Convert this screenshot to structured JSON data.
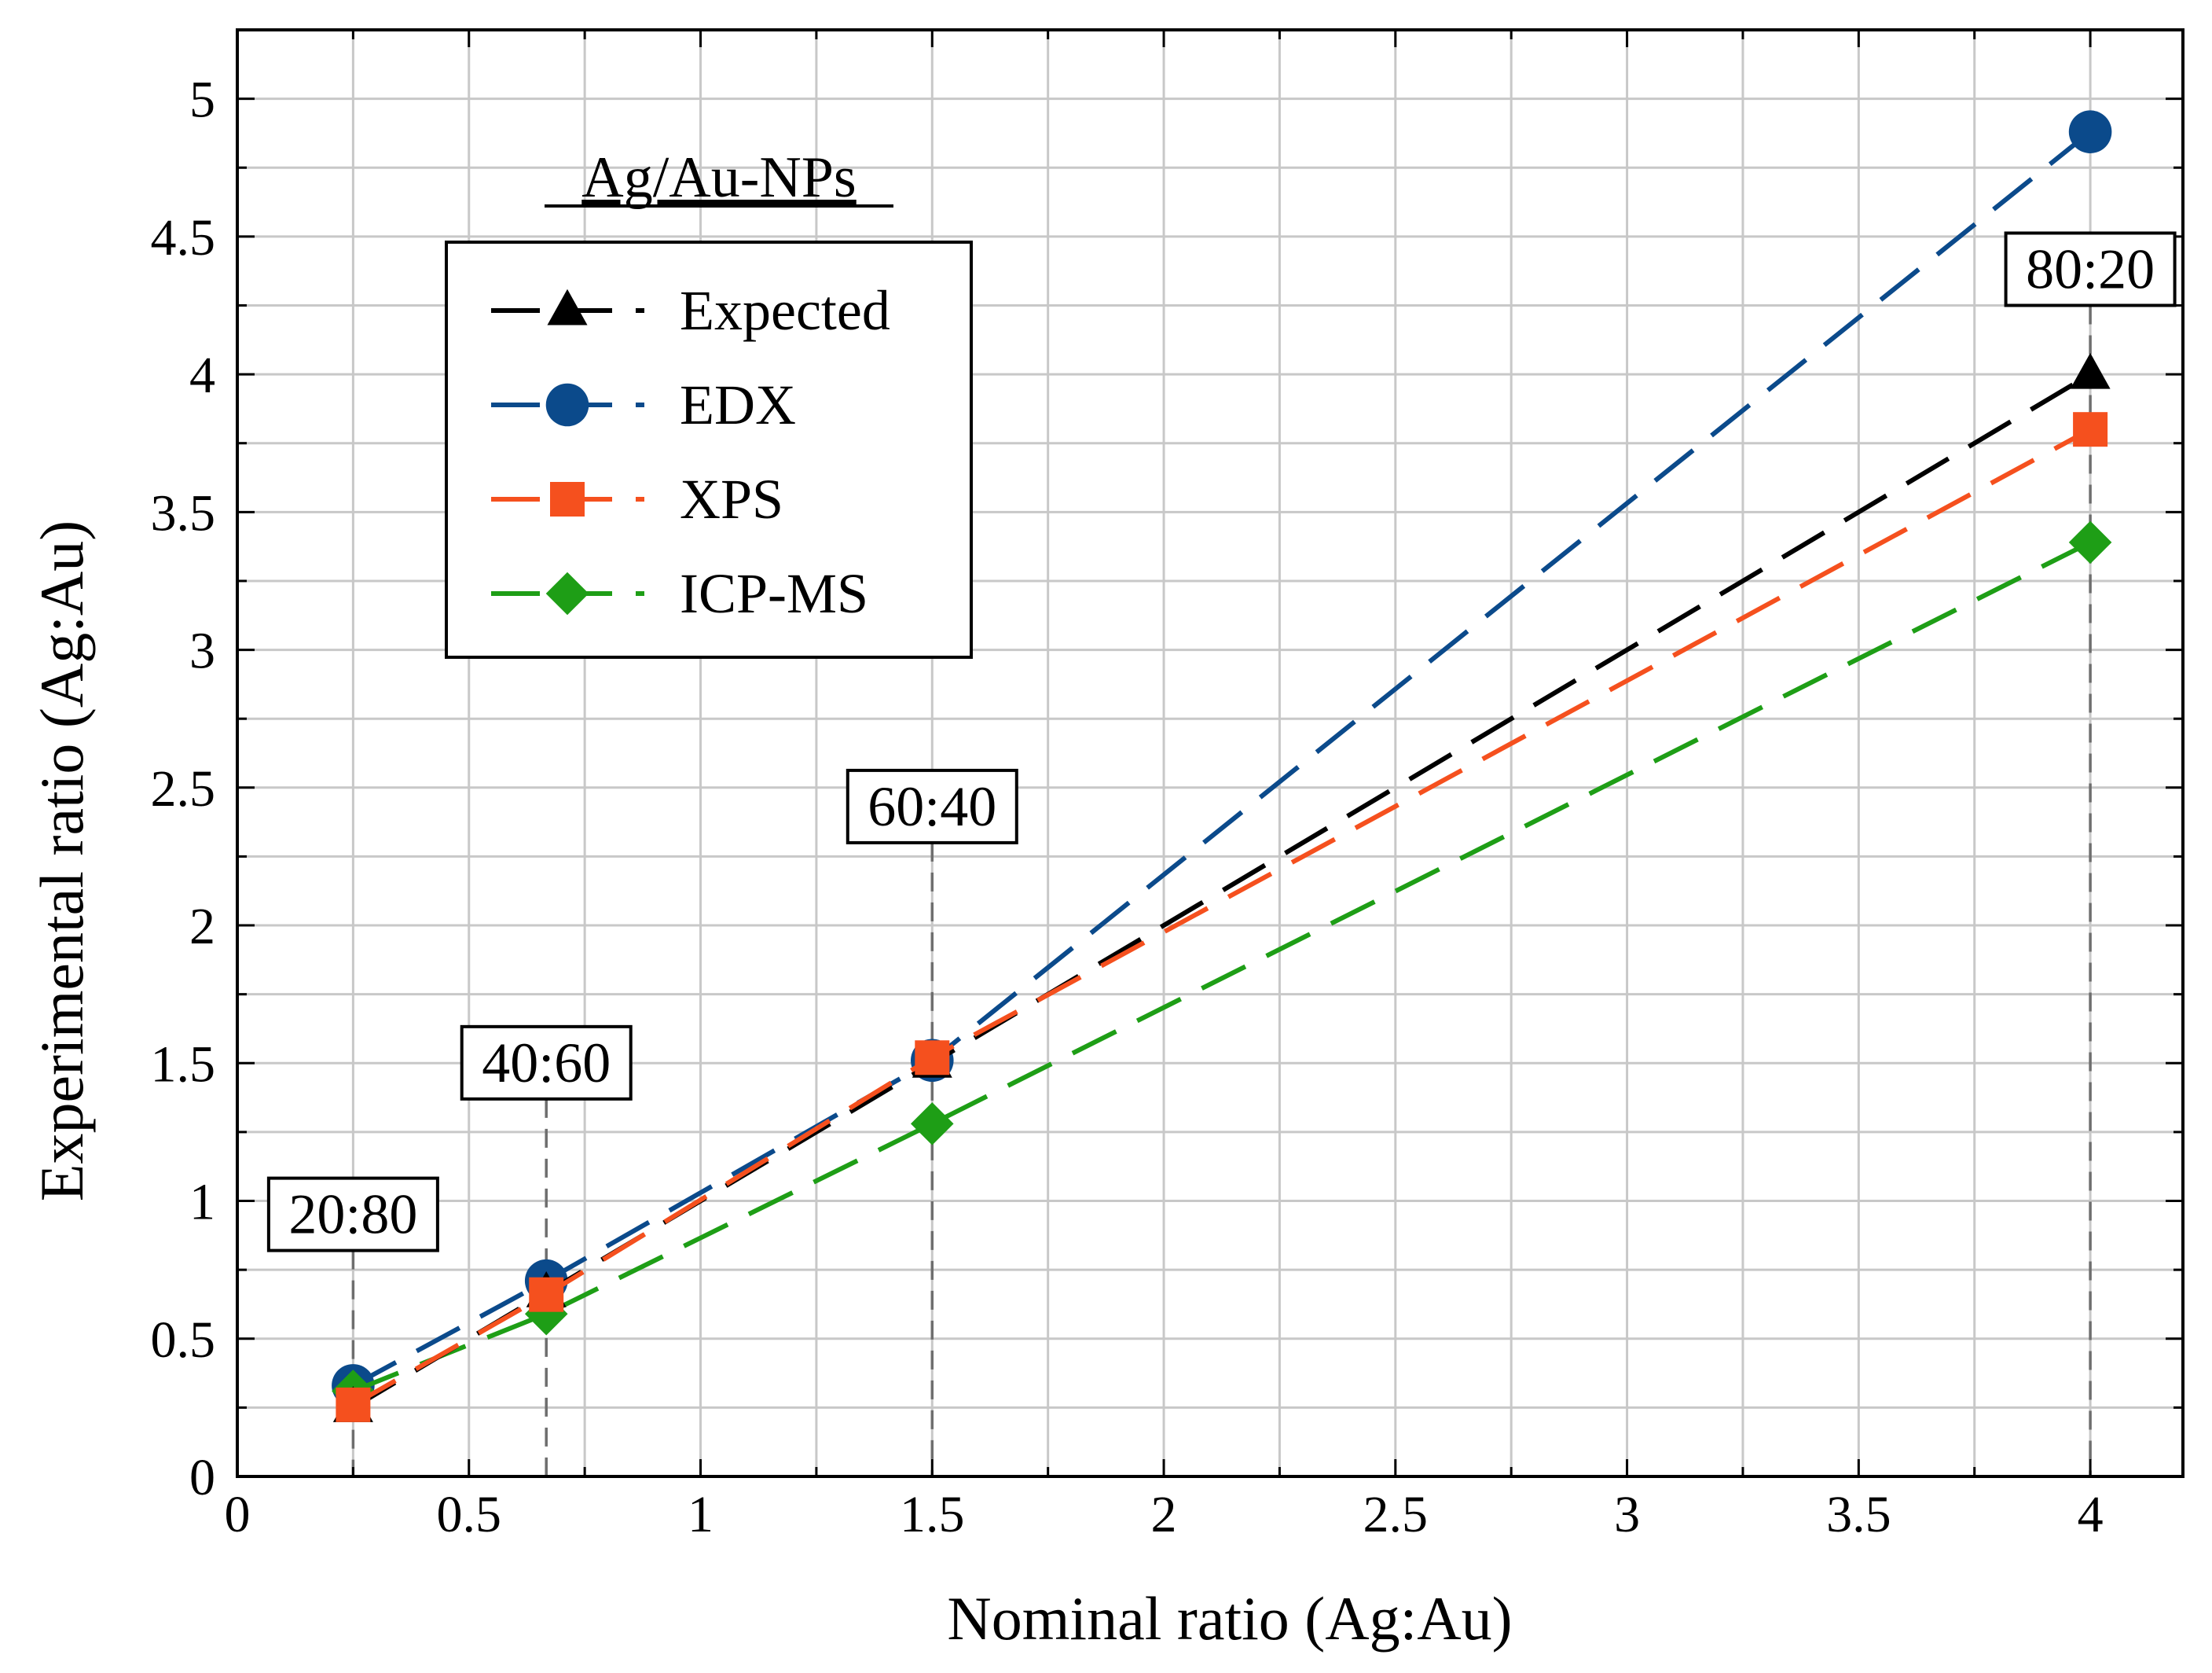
{
  "chart_data": {
    "type": "line",
    "title": "",
    "inset_title": "Ag/Au-NPs",
    "xlabel": "Nominal ratio (Ag:Au)",
    "ylabel": "Experimental ratio (Ag:Au)",
    "xlim": [
      0,
      4.2
    ],
    "ylim": [
      0,
      5.25
    ],
    "x_ticks": [
      0,
      0.5,
      1,
      1.5,
      2,
      2.5,
      3,
      3.5,
      4
    ],
    "x_tick_labels": [
      "0",
      "0.5",
      "1",
      "1.5",
      "2",
      "2.5",
      "3",
      "3.5",
      "4"
    ],
    "y_ticks": [
      0,
      0.5,
      1,
      1.5,
      2,
      2.5,
      3,
      3.5,
      4,
      4.5,
      5
    ],
    "y_tick_labels": [
      "0",
      "0.5",
      "1",
      "1.5",
      "2",
      "2.5",
      "3",
      "3.5",
      "4",
      "4.5",
      "5"
    ],
    "grid": true,
    "legend_position": "upper-left",
    "series": [
      {
        "name": "Expected",
        "color": "#000000",
        "marker": "triangle",
        "x": [
          0.25,
          0.667,
          1.5,
          4
        ],
        "values": [
          0.25,
          0.667,
          1.5,
          4
        ]
      },
      {
        "name": "EDX",
        "color": "#0b4a8b",
        "marker": "circle",
        "x": [
          0.25,
          0.667,
          1.5,
          4
        ],
        "values": [
          0.33,
          0.71,
          1.51,
          4.88
        ]
      },
      {
        "name": "XPS",
        "color": "#f5501e",
        "marker": "square",
        "x": [
          0.25,
          0.667,
          1.5,
          4
        ],
        "values": [
          0.26,
          0.66,
          1.52,
          3.8
        ]
      },
      {
        "name": "ICP-MS",
        "color": "#1e9e16",
        "marker": "diamond",
        "x": [
          0.25,
          0.667,
          1.5,
          4
        ],
        "values": [
          0.31,
          0.59,
          1.28,
          3.39
        ]
      }
    ],
    "annotations": [
      {
        "text": "20:80",
        "x": 0.25,
        "y_top": 0.82
      },
      {
        "text": "40:60",
        "x": 0.667,
        "y_top": 1.37
      },
      {
        "text": "60:40",
        "x": 1.5,
        "y_top": 2.3
      },
      {
        "text": "80:20",
        "x": 4,
        "y_top": 4.25
      }
    ]
  }
}
